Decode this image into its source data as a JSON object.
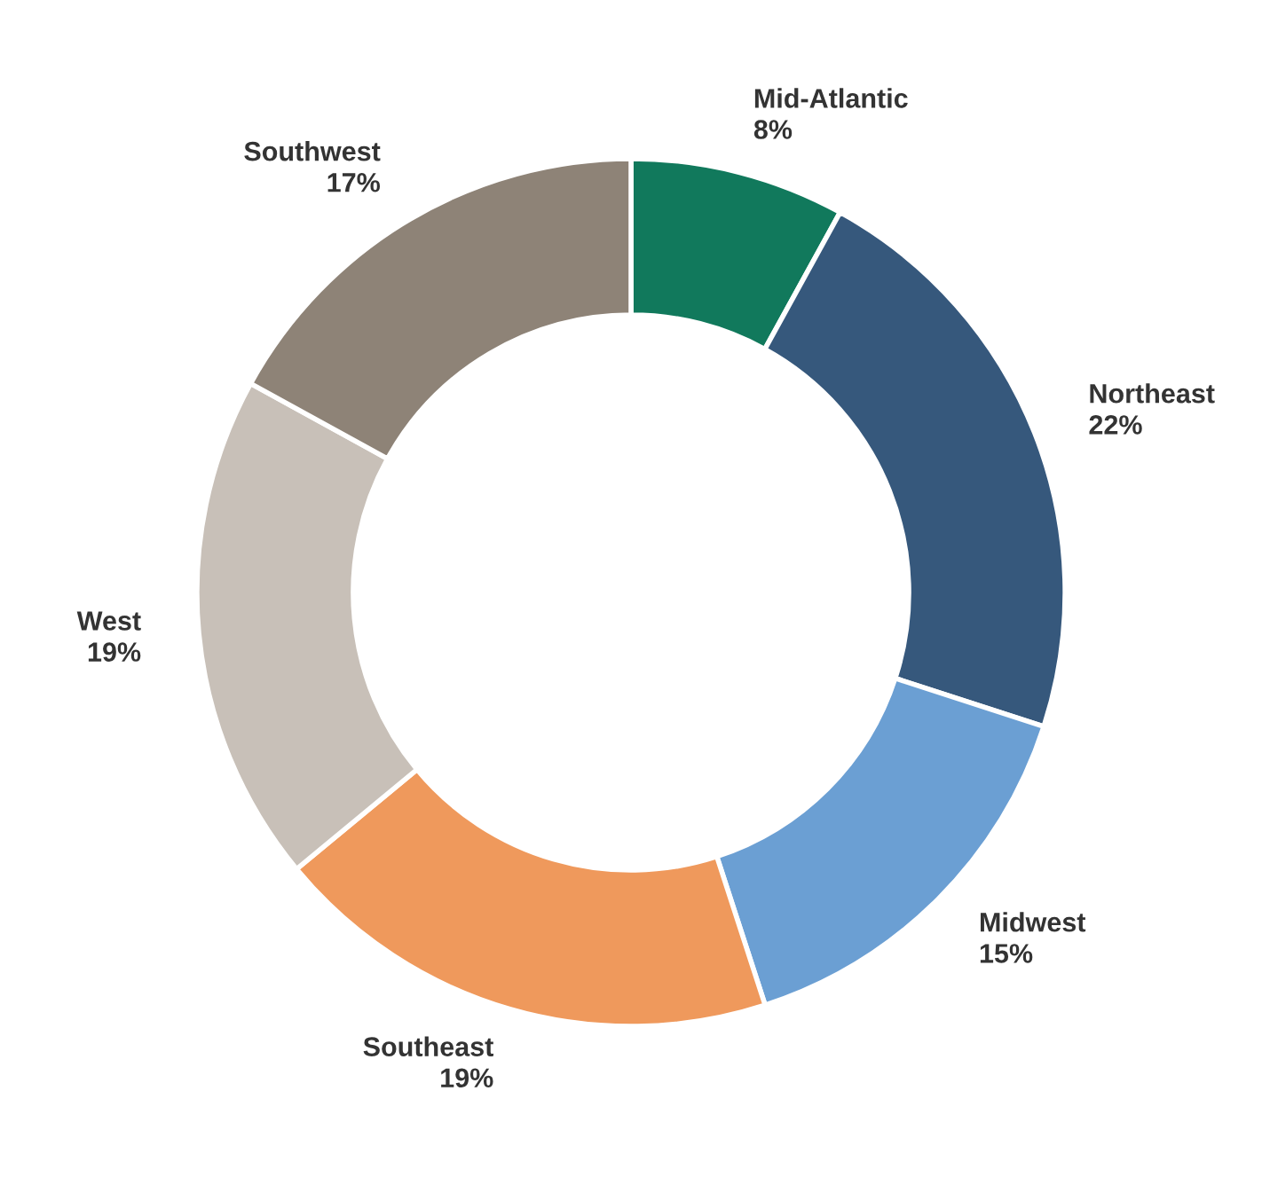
{
  "chart_data": {
    "type": "donut",
    "categories": [
      "Mid-Atlantic",
      "Northeast",
      "Midwest",
      "Southeast",
      "West",
      "Southwest"
    ],
    "values": [
      8,
      22,
      15,
      19,
      19,
      17
    ],
    "colors": [
      "#11795c",
      "#36587c",
      "#6b9fd3",
      "#ef995c",
      "#c8c0b8",
      "#8e8377"
    ],
    "value_labels": [
      "8%",
      "22%",
      "15%",
      "19%",
      "19%",
      "17%"
    ],
    "legend": false
  }
}
